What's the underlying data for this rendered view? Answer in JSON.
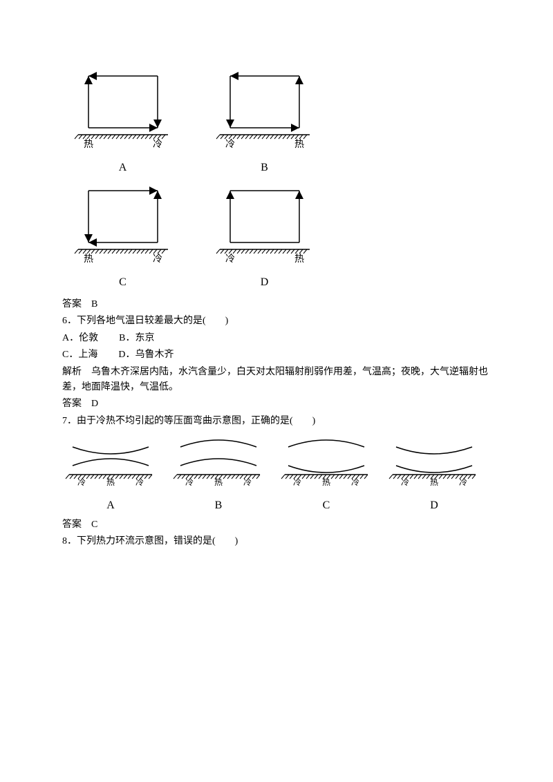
{
  "colors": {
    "text": "#000000",
    "bg": "#ffffff"
  },
  "fontsize": 14,
  "q5": {
    "answer_prefix": "答案",
    "answer": "B",
    "cells": [
      {
        "left": "热",
        "right": "冷",
        "label": "A",
        "leftArrow": "up",
        "rightArrow": "down",
        "topDir": "left",
        "botDir": "right"
      },
      {
        "left": "冷",
        "right": "热",
        "label": "B",
        "leftArrow": "down",
        "rightArrow": "up",
        "topDir": "left",
        "botDir": "right"
      },
      {
        "left": "热",
        "right": "冷",
        "label": "C",
        "leftArrow": "down",
        "rightArrow": "up",
        "topDir": "right",
        "botDir": "left"
      },
      {
        "left": "冷",
        "right": "热",
        "label": "D",
        "leftArrow": "up",
        "rightArrow": "up",
        "topDir": "none",
        "botDir": "none"
      }
    ]
  },
  "q6": {
    "stem": "6．下列各地气温日较差最大的是(　　)",
    "opts": {
      "A": "A．伦敦",
      "B": "B．东京",
      "C": "C．上海",
      "D": "D．乌鲁木齐"
    },
    "explain": "解析　乌鲁木齐深居内陆，水汽含量少，白天对太阳辐射削弱作用差，气温高；夜晚，大气逆辐射也差，地面降温快，气温低。",
    "answer_prefix": "答案",
    "answer": "D"
  },
  "q7": {
    "stem": "7．由于冷热不均引起的等压面弯曲示意图，正确的是(　　)",
    "ground_char": {
      "left": "冷",
      "mid": "热",
      "right": "冷"
    },
    "cells": [
      {
        "label": "A",
        "topCurve": "down",
        "botCurve": "up"
      },
      {
        "label": "B",
        "topCurve": "up",
        "botCurve": "up"
      },
      {
        "label": "C",
        "topCurve": "up",
        "botCurve": "down"
      },
      {
        "label": "D",
        "topCurve": "down",
        "botCurve": "down"
      }
    ],
    "answer_prefix": "答案",
    "answer": "C"
  },
  "q8": {
    "stem": "8．下列热力环流示意图，错误的是(　　)"
  }
}
